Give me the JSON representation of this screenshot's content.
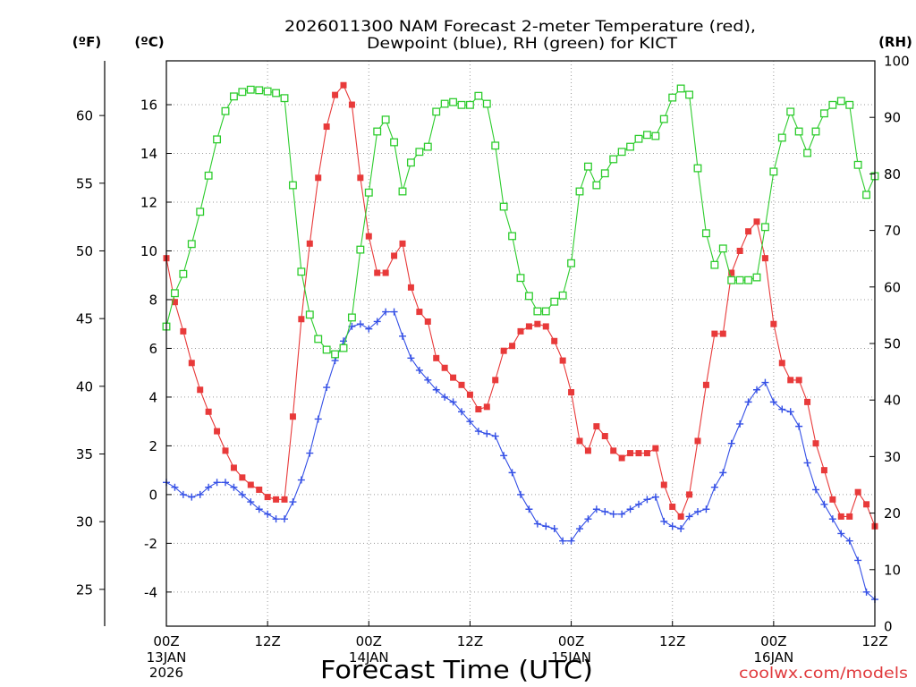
{
  "chart_data": {
    "type": "line",
    "title": [
      "2026011300 NAM Forecast 2-meter Temperature (red),",
      "Dewpoint (blue), RH (green) for KICT"
    ],
    "xlabel": "Forecast Time (UTC)",
    "grid": true,
    "x_range": [
      0,
      84
    ],
    "x": [
      0,
      1,
      2,
      3,
      4,
      5,
      6,
      7,
      8,
      9,
      10,
      11,
      12,
      13,
      14,
      15,
      16,
      17,
      18,
      19,
      20,
      21,
      22,
      23,
      24,
      25,
      26,
      27,
      28,
      29,
      30,
      31,
      32,
      33,
      34,
      35,
      36,
      37,
      38,
      39,
      40,
      41,
      42,
      43,
      44,
      45,
      46,
      47,
      48,
      49,
      50,
      51,
      52,
      53,
      54,
      55,
      56,
      57,
      58,
      59,
      60,
      61,
      62,
      63,
      64,
      65,
      66,
      67,
      68,
      69,
      70,
      71,
      72,
      73,
      74,
      75,
      76,
      77,
      78,
      79,
      80,
      81,
      82,
      83,
      84
    ],
    "x_ticks": [
      {
        "hour": 0,
        "label": "00Z",
        "date": "13JAN",
        "year": "2026"
      },
      {
        "hour": 12,
        "label": "12Z"
      },
      {
        "hour": 24,
        "label": "00Z",
        "date": "14JAN"
      },
      {
        "hour": 36,
        "label": "12Z"
      },
      {
        "hour": 48,
        "label": "00Z",
        "date": "15JAN"
      },
      {
        "hour": 60,
        "label": "12Z"
      },
      {
        "hour": 72,
        "label": "00Z",
        "date": "16JAN"
      },
      {
        "hour": 84,
        "label": "12Z"
      }
    ],
    "axes": {
      "fahrenheit": {
        "label": "(ºF)",
        "ticks": [
          25,
          30,
          35,
          40,
          45,
          50,
          55,
          60
        ]
      },
      "celsius": {
        "label": "(ºC)",
        "ticks": [
          -4,
          -2,
          0,
          2,
          4,
          6,
          8,
          10,
          12,
          14,
          16
        ],
        "range": [
          -5.4,
          17.8
        ]
      },
      "rh": {
        "label": "(RH)",
        "ticks": [
          0,
          10,
          20,
          30,
          40,
          50,
          60,
          70,
          80,
          90,
          100
        ],
        "range": [
          0,
          100
        ]
      }
    },
    "series": {
      "temperature": {
        "color": "#e83a3a",
        "values": [
          9.7,
          7.9,
          6.7,
          5.4,
          4.3,
          3.4,
          2.6,
          1.8,
          1.1,
          0.7,
          0.4,
          0.2,
          -0.1,
          -0.2,
          -0.2,
          3.2,
          7.2,
          10.3,
          13.0,
          15.1,
          16.4,
          16.8,
          16.0,
          13.0,
          10.6,
          9.1,
          9.1,
          9.8,
          10.3,
          8.5,
          7.5,
          7.1,
          5.6,
          5.2,
          4.8,
          4.5,
          4.1,
          3.5,
          3.6,
          4.7,
          5.9,
          6.1,
          6.7,
          6.9,
          7.0,
          6.9,
          6.3,
          5.5,
          4.2,
          2.2,
          1.8,
          2.8,
          2.4,
          1.8,
          1.5,
          1.7,
          1.7,
          1.7,
          1.9,
          0.4,
          -0.5,
          -0.9,
          0.0,
          2.2,
          4.5,
          6.6,
          6.6,
          9.1,
          10.0,
          10.8,
          11.2,
          9.7,
          7.0,
          5.4,
          4.7,
          4.7,
          3.8,
          2.1,
          1.0,
          -0.2,
          -0.9,
          -0.9,
          0.1,
          -0.4,
          -1.3
        ]
      },
      "dewpoint": {
        "color": "#3550e6",
        "values": [
          0.5,
          0.3,
          0.0,
          -0.1,
          0.0,
          0.3,
          0.5,
          0.5,
          0.3,
          0.0,
          -0.3,
          -0.6,
          -0.8,
          -1.0,
          -1.0,
          -0.3,
          0.6,
          1.7,
          3.1,
          4.4,
          5.5,
          6.3,
          6.9,
          7.0,
          6.8,
          7.1,
          7.5,
          7.5,
          6.5,
          5.6,
          5.1,
          4.7,
          4.3,
          4.0,
          3.8,
          3.4,
          3.0,
          2.6,
          2.5,
          2.4,
          1.6,
          0.9,
          0.0,
          -0.6,
          -1.2,
          -1.3,
          -1.4,
          -1.9,
          -1.9,
          -1.4,
          -1.0,
          -0.6,
          -0.7,
          -0.8,
          -0.8,
          -0.6,
          -0.4,
          -0.2,
          -0.1,
          -1.1,
          -1.3,
          -1.4,
          -0.9,
          -0.7,
          -0.6,
          0.3,
          0.9,
          2.1,
          2.9,
          3.8,
          4.3,
          4.6,
          3.8,
          3.5,
          3.4,
          2.8,
          1.3,
          0.2,
          -0.4,
          -1.0,
          -1.6,
          -1.9,
          -2.7,
          -4.0,
          -4.3
        ]
      },
      "rh": {
        "color": "#2ecc2e",
        "values": [
          53.0,
          58.9,
          62.3,
          67.6,
          73.3,
          79.7,
          86.1,
          91.1,
          93.7,
          94.5,
          94.9,
          94.8,
          94.6,
          94.3,
          93.4,
          78.0,
          62.7,
          55.1,
          50.8,
          48.9,
          48.1,
          49.2,
          54.6,
          66.6,
          76.7,
          87.5,
          89.6,
          85.6,
          76.9,
          82.0,
          83.9,
          84.8,
          91.0,
          92.4,
          92.7,
          92.2,
          92.2,
          93.8,
          92.4,
          85.0,
          74.2,
          69.0,
          61.6,
          58.4,
          55.7,
          55.7,
          57.4,
          58.5,
          64.2,
          76.9,
          81.3,
          78.0,
          80.1,
          82.6,
          83.9,
          84.8,
          86.2,
          86.9,
          86.7,
          89.7,
          93.5,
          95.1,
          94.0,
          81.0,
          69.5,
          63.9,
          66.8,
          61.2,
          61.2,
          61.2,
          61.7,
          70.6,
          80.4,
          86.4,
          91.0,
          87.5,
          83.7,
          87.5,
          90.7,
          92.2,
          92.9,
          92.2,
          81.6,
          76.3,
          79.6
        ]
      }
    }
  },
  "credit": {
    "text": "coolwx.com/models",
    "color": "#e0393c"
  }
}
